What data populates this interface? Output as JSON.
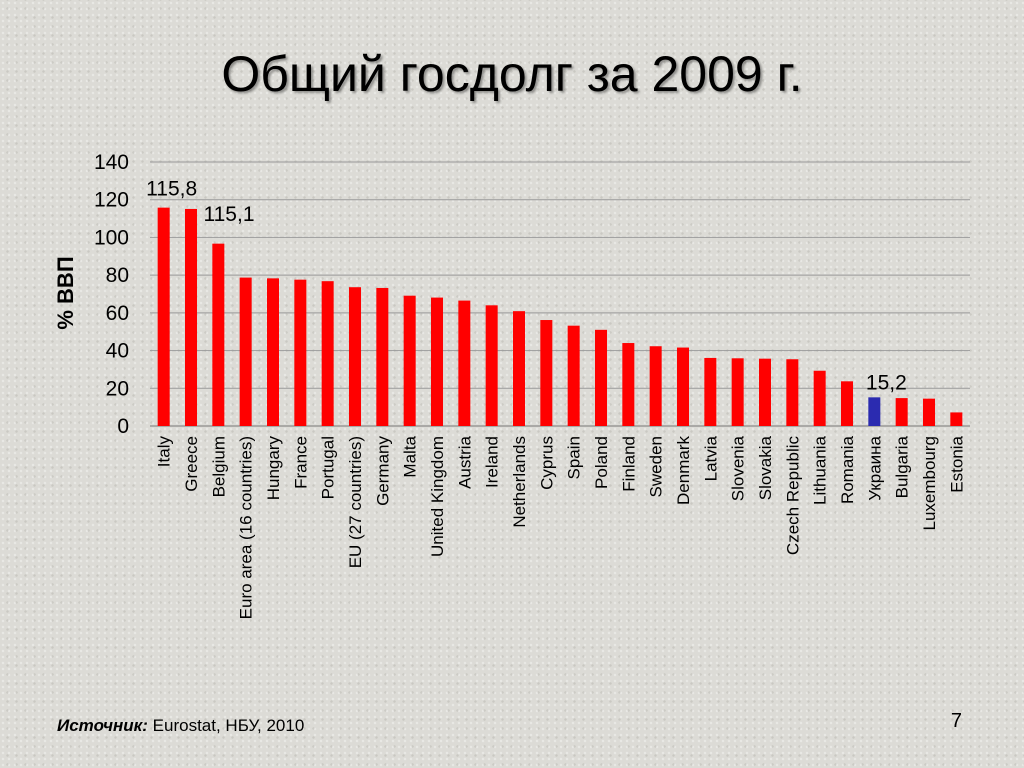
{
  "slide": {
    "title": "Общий госдолг за 2009 г.",
    "source_label": "Источник:",
    "source_text": " Eurostat, НБУ, 2010",
    "page_number": "7"
  },
  "colors": {
    "bar": "#ff0000",
    "highlight_bar": "#2b2bb0",
    "grid": "#9a9a9a"
  },
  "chart_data": {
    "type": "bar",
    "ylabel": "% ВВП",
    "xlabel": "",
    "ylim": [
      0,
      140
    ],
    "yticks": [
      0,
      20,
      40,
      60,
      80,
      100,
      120,
      140
    ],
    "grid": true,
    "categories": [
      "Italy",
      "Greece",
      "Belgium",
      "Euro area  (16 countries)",
      "Hungary",
      "France",
      "Portugal",
      "EU (27 countries)",
      "Germany",
      "Malta",
      "United Kingdom",
      "Austria",
      "Ireland",
      "Netherlands",
      "Cyprus",
      "Spain",
      "Poland",
      "Finland",
      "Sweden",
      "Denmark",
      "Latvia",
      "Slovenia",
      "Slovakia",
      "Czech Republic",
      "Lithuania",
      "Romania",
      "Украина",
      "Bulgaria",
      "Luxembourg",
      "Estonia"
    ],
    "values": [
      115.8,
      115.1,
      96.7,
      78.7,
      78.3,
      77.6,
      76.8,
      73.6,
      73.2,
      69.1,
      68.1,
      66.5,
      64.0,
      60.9,
      56.2,
      53.2,
      51.0,
      44.0,
      42.3,
      41.6,
      36.1,
      35.9,
      35.7,
      35.4,
      29.3,
      23.7,
      15.2,
      14.8,
      14.5,
      7.2
    ],
    "highlight_index": 26,
    "data_labels": [
      {
        "index": 0,
        "text": "115,8"
      },
      {
        "index": 1,
        "text": "115,1"
      },
      {
        "index": 26,
        "text": "15,2"
      }
    ]
  }
}
